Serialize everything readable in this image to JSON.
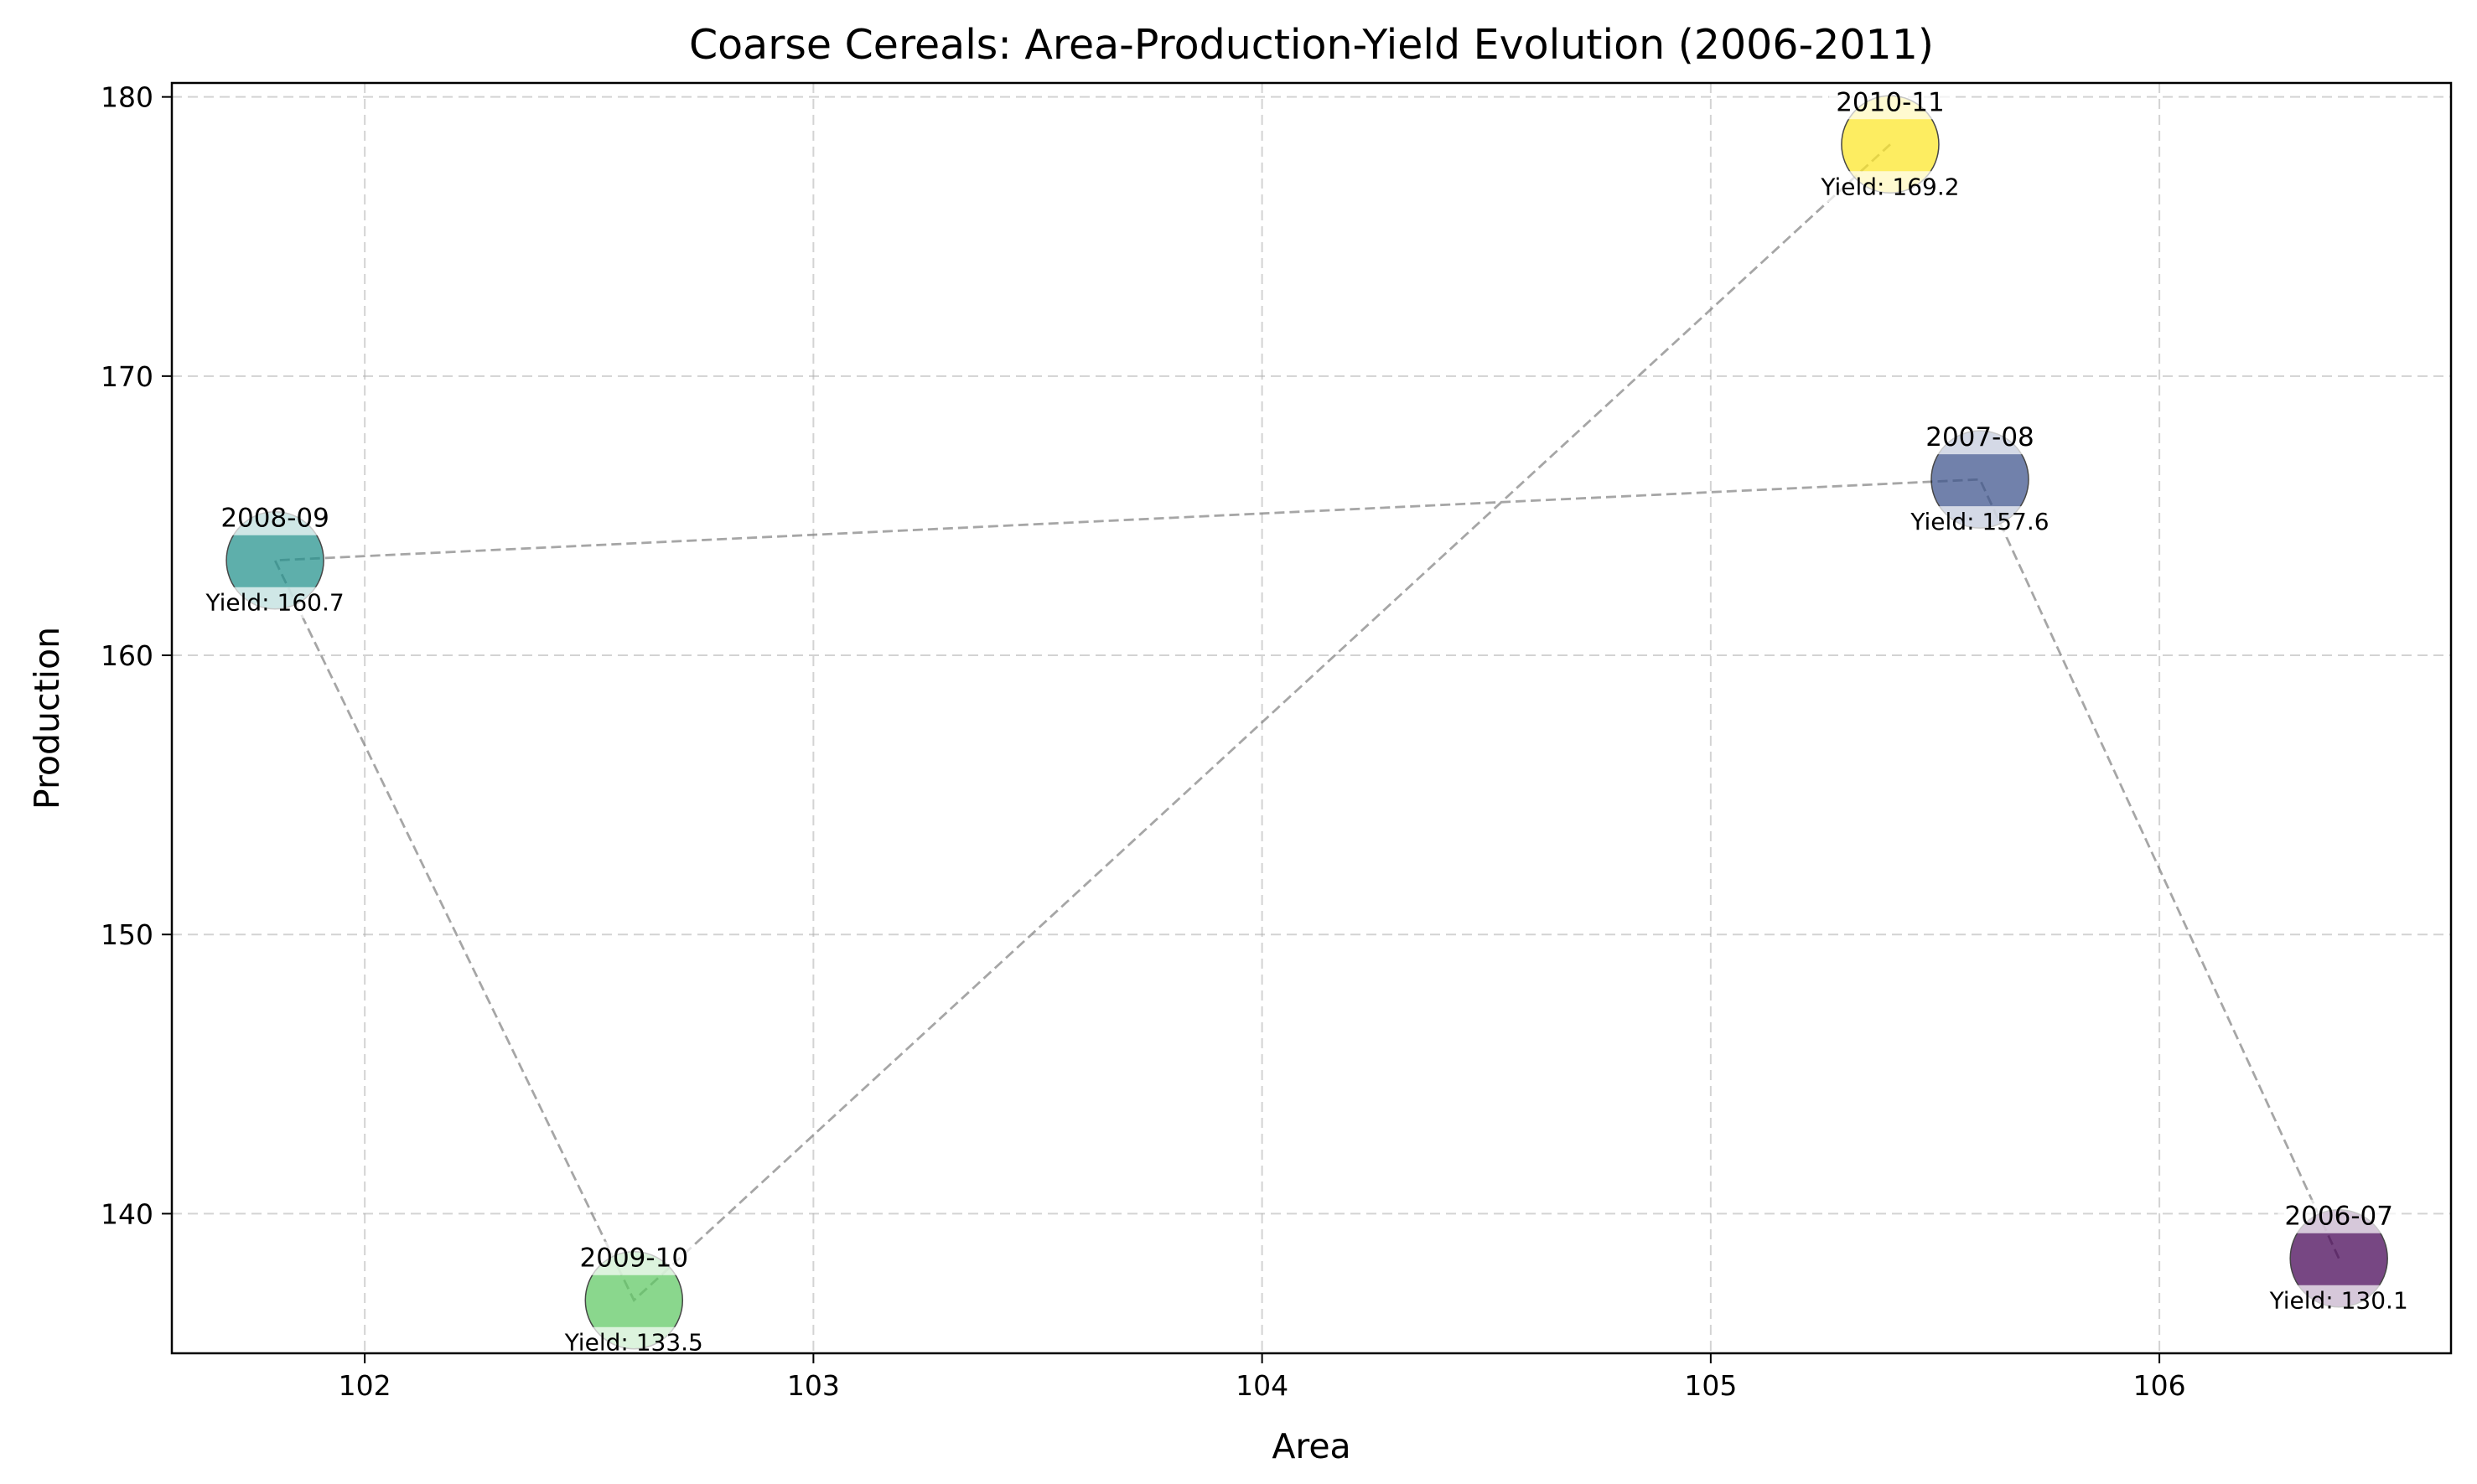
{
  "chart_data": {
    "type": "scatter",
    "title": "Coarse Cereals: Area-Production-Yield Evolution (2006-2011)",
    "xlabel": "Area",
    "ylabel": "Production",
    "xlim": [
      101.57,
      106.65
    ],
    "ylim": [
      135.0,
      180.5
    ],
    "xticks": [
      102,
      103,
      104,
      105,
      106
    ],
    "yticks": [
      140,
      150,
      160,
      170,
      180
    ],
    "grid": true,
    "yield_prefix": "Yield: ",
    "points": [
      {
        "label": "2006-07",
        "x": 106.4,
        "y": 138.4,
        "yield": "130.1",
        "color": "#440154"
      },
      {
        "label": "2007-08",
        "x": 105.6,
        "y": 166.3,
        "yield": "157.6",
        "color": "#3b528b"
      },
      {
        "label": "2008-09",
        "x": 101.8,
        "y": 163.4,
        "yield": "160.7",
        "color": "#21918c"
      },
      {
        "label": "2009-10",
        "x": 102.6,
        "y": 136.9,
        "yield": "133.5",
        "color": "#5ec962"
      },
      {
        "label": "2010-11",
        "x": 105.4,
        "y": 178.3,
        "yield": "169.2",
        "color": "#fde725"
      }
    ]
  }
}
